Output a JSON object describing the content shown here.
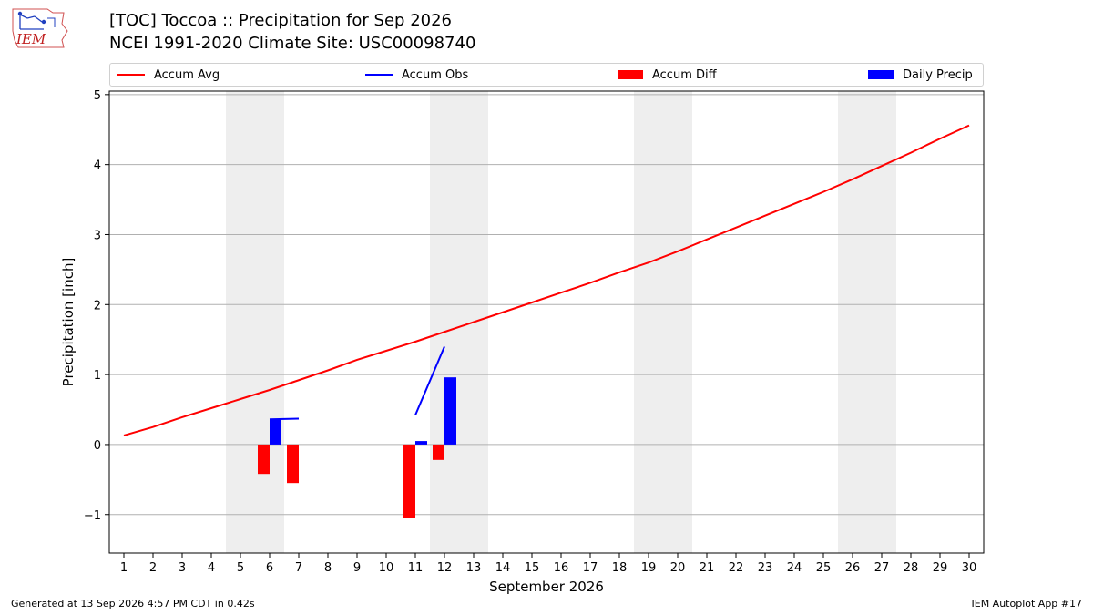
{
  "header": {
    "title_line1": "[TOC] Toccoa :: Precipitation for Sep 2026",
    "title_line2": "NCEI 1991-2020 Climate Site: USC00098740",
    "logo_text": "IEM"
  },
  "footer": {
    "generated": "Generated at 13 Sep 2026 4:57 PM CDT in 0.42s",
    "app": "IEM Autoplot App #17"
  },
  "colors": {
    "avg": "#ff0000",
    "obs": "#0000ff",
    "diff": "#ff0000",
    "daily": "#0000ff",
    "weekend": "#eeeeee",
    "grid": "#b0b0b0"
  },
  "chart_data": {
    "type": "line",
    "xlabel": "September 2026",
    "ylabel": "Precipitation [inch]",
    "xlim": [
      0.5,
      30.5
    ],
    "ylim": [
      -1.55,
      5.05
    ],
    "x_ticks": [
      1,
      2,
      3,
      4,
      5,
      6,
      7,
      8,
      9,
      10,
      11,
      12,
      13,
      14,
      15,
      16,
      17,
      18,
      19,
      20,
      21,
      22,
      23,
      24,
      25,
      26,
      27,
      28,
      29,
      30
    ],
    "y_ticks": [
      -1,
      0,
      1,
      2,
      3,
      4,
      5
    ],
    "y_tick_labels": [
      "−1",
      "0",
      "1",
      "2",
      "3",
      "4",
      "5"
    ],
    "grid": "horizontal",
    "legend": {
      "position": "top",
      "entries": [
        "Accum Avg",
        "Accum Obs",
        "Accum Diff",
        "Daily Precip"
      ]
    },
    "weekend_bands": [
      [
        4.5,
        6.5
      ],
      [
        11.5,
        13.5
      ],
      [
        18.5,
        20.5
      ],
      [
        25.5,
        27.5
      ]
    ],
    "series": [
      {
        "name": "Accum Avg",
        "kind": "line",
        "x": [
          1,
          2,
          3,
          4,
          5,
          6,
          7,
          8,
          9,
          10,
          11,
          12,
          13,
          14,
          15,
          16,
          17,
          18,
          19,
          20,
          21,
          22,
          23,
          24,
          25,
          26,
          27,
          28,
          29,
          30
        ],
        "values": [
          0.13,
          0.25,
          0.39,
          0.52,
          0.65,
          0.78,
          0.92,
          1.06,
          1.21,
          1.34,
          1.47,
          1.61,
          1.75,
          1.89,
          2.03,
          2.17,
          2.31,
          2.46,
          2.6,
          2.76,
          2.93,
          3.1,
          3.27,
          3.44,
          3.61,
          3.79,
          3.98,
          4.17,
          4.37,
          4.56
        ]
      },
      {
        "name": "Accum Obs",
        "kind": "line",
        "x": [
          6,
          7,
          11,
          12
        ],
        "values": [
          0.36,
          0.37,
          0.42,
          1.4
        ],
        "breaks_after": [
          7
        ]
      },
      {
        "name": "Accum Diff",
        "kind": "bar",
        "x": [
          6,
          7,
          11,
          12
        ],
        "values": [
          -0.42,
          -0.55,
          -1.05,
          -0.22
        ]
      },
      {
        "name": "Daily Precip",
        "kind": "bar",
        "x": [
          6,
          11,
          12
        ],
        "values": [
          0.36,
          0.05,
          0.96
        ]
      }
    ]
  }
}
